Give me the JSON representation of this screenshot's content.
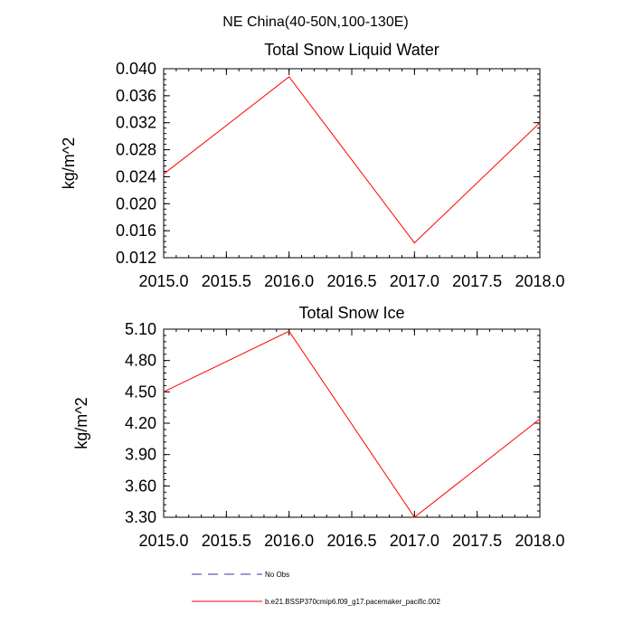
{
  "figure": {
    "suptitle": "NE China(40-50N,100-130E)"
  },
  "colors": {
    "model_line": "#ff0000",
    "obs_line": "#3333aa",
    "axis": "#000000"
  },
  "chart_data": [
    {
      "type": "line",
      "title": "Total Snow Liquid Water",
      "xlabel": "",
      "ylabel": "kg/m^2",
      "x": [
        2015.0,
        2016.0,
        2017.0,
        2018.0
      ],
      "series": [
        {
          "name": "b.e21.BSSP370cmip6.f09_g17.pacemaker_pacific.002",
          "values": [
            0.0244,
            0.0388,
            0.0142,
            0.032
          ]
        }
      ],
      "xlim": [
        2015.0,
        2018.0
      ],
      "ylim": [
        0.012,
        0.04
      ],
      "xticks": [
        2015.0,
        2015.5,
        2016.0,
        2016.5,
        2017.0,
        2017.5,
        2018.0
      ],
      "xtick_labels": [
        "2015.0",
        "2015.5",
        "2016.0",
        "2016.5",
        "2017.0",
        "2017.5",
        "2018.0"
      ],
      "yticks": [
        0.012,
        0.016,
        0.02,
        0.024,
        0.028,
        0.032,
        0.036,
        0.04
      ],
      "ytick_labels": [
        "0.012",
        "0.016",
        "0.020",
        "0.024",
        "0.028",
        "0.032",
        "0.036",
        "0.040"
      ],
      "grid": false
    },
    {
      "type": "line",
      "title": "Total Snow Ice",
      "xlabel": "",
      "ylabel": "kg/m^2",
      "x": [
        2015.0,
        2016.0,
        2017.0,
        2018.0
      ],
      "series": [
        {
          "name": "b.e21.BSSP370cmip6.f09_g17.pacemaker_pacific.002",
          "values": [
            4.5,
            5.08,
            3.3,
            4.24
          ]
        }
      ],
      "xlim": [
        2015.0,
        2018.0
      ],
      "ylim": [
        3.3,
        5.1
      ],
      "xticks": [
        2015.0,
        2015.5,
        2016.0,
        2016.5,
        2017.0,
        2017.5,
        2018.0
      ],
      "xtick_labels": [
        "2015.0",
        "2015.5",
        "2016.0",
        "2016.5",
        "2017.0",
        "2017.5",
        "2018.0"
      ],
      "yticks": [
        3.3,
        3.6,
        3.9,
        4.2,
        4.5,
        4.8,
        5.1
      ],
      "ytick_labels": [
        "3.30",
        "3.60",
        "3.90",
        "4.20",
        "4.50",
        "4.80",
        "5.10"
      ],
      "grid": false
    }
  ],
  "legend": {
    "placement": "bottom",
    "entries": [
      {
        "label": "No Obs",
        "style": "dashed"
      },
      {
        "label": "b.e21.BSSP370cmip6.f09_g17.pacemaker_pacific.002",
        "style": "solid"
      }
    ]
  }
}
